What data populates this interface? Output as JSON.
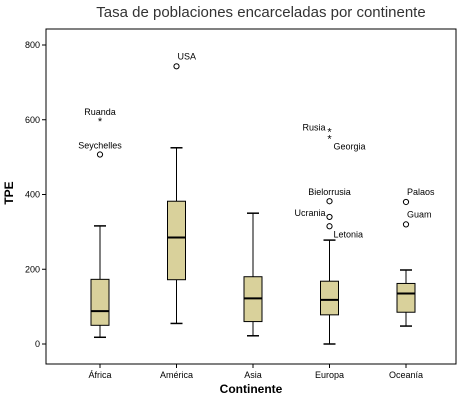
{
  "chart_data": {
    "type": "boxplot",
    "title": "Tasa de poblaciones encarceladas por continente",
    "xlabel": "Continente",
    "ylabel": "TPE",
    "ylim": [
      -30,
      830
    ],
    "yticks": [
      0,
      200,
      400,
      600,
      800
    ],
    "categories": [
      "África",
      "América",
      "Asia",
      "Europa",
      "Oceanía"
    ],
    "box_color": "#d9d19b",
    "boxes": [
      {
        "category": "África",
        "whisker_low": 18,
        "q1": 50,
        "median": 88,
        "q3": 173,
        "whisker_high": 316
      },
      {
        "category": "América",
        "whisker_low": 55,
        "q1": 172,
        "median": 285,
        "q3": 382,
        "whisker_high": 525
      },
      {
        "category": "Asia",
        "whisker_low": 22,
        "q1": 60,
        "median": 122,
        "q3": 180,
        "whisker_high": 350
      },
      {
        "category": "Europa",
        "whisker_low": 0,
        "q1": 78,
        "median": 118,
        "q3": 168,
        "whisker_high": 278
      },
      {
        "category": "Oceanía",
        "whisker_low": 48,
        "q1": 85,
        "median": 135,
        "q3": 162,
        "whisker_high": 198
      }
    ],
    "outliers": [
      {
        "category": "África",
        "value": 597,
        "marker": "star",
        "label": "Ruanda",
        "label_pos": "above"
      },
      {
        "category": "África",
        "value": 507,
        "marker": "circle",
        "label": "Seychelles",
        "label_pos": "above"
      },
      {
        "category": "América",
        "value": 743,
        "marker": "circle",
        "label": "USA",
        "label_pos": "above-right"
      },
      {
        "category": "Europa",
        "value": 568,
        "marker": "star",
        "label": "Rusia",
        "label_pos": "left"
      },
      {
        "category": "Europa",
        "value": 550,
        "marker": "star",
        "label": "Georgia",
        "label_pos": "below-right"
      },
      {
        "category": "Europa",
        "value": 382,
        "marker": "circle",
        "label": "Bielorrusia",
        "label_pos": "above"
      },
      {
        "category": "Europa",
        "value": 340,
        "marker": "circle",
        "label": "Ucrania",
        "label_pos": "left"
      },
      {
        "category": "Europa",
        "value": 315,
        "marker": "circle",
        "label": "Letonia",
        "label_pos": "below-right"
      },
      {
        "category": "Oceanía",
        "value": 380,
        "marker": "circle",
        "label": "Palaos",
        "label_pos": "above-right"
      },
      {
        "category": "Oceanía",
        "value": 320,
        "marker": "circle",
        "label": "Guam",
        "label_pos": "above-right"
      }
    ]
  }
}
